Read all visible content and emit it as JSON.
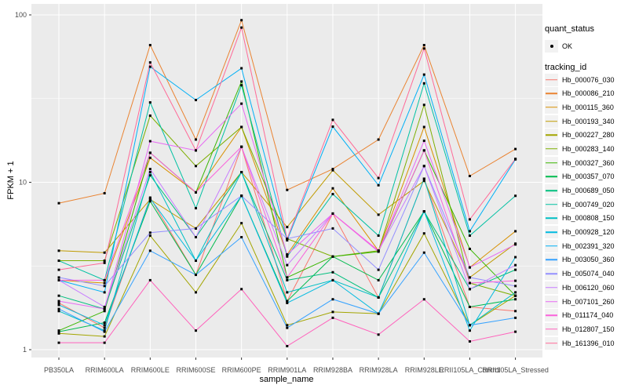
{
  "theme": {
    "panel_bg": "#EBEBEB",
    "grid_color": "#FFFFFF",
    "tick_color": "#333333",
    "tick_label_color": "#4D4D4D",
    "point_color": "#000000",
    "legend_key_bg": "#F2F2F2"
  },
  "chart_data": {
    "type": "line",
    "title": "",
    "xlabel": "sample_name",
    "ylabel": "FPKM + 1",
    "y_scale": "log10",
    "ylim": [
      0.91,
      115
    ],
    "y_ticks": [
      100,
      10,
      1
    ],
    "y_minor_ticks": [
      3.162,
      31.62
    ],
    "grid": true,
    "legend_position": "right",
    "marker": "black-square",
    "categories": [
      "PB350LA",
      "RRIM600LA",
      "RRIM600LE",
      "RRIM600SE",
      "RRIM600PE",
      "RRIM901LA",
      "RRIM928BA",
      "RRIM928LA",
      "RRIM928LE",
      "RRII105LA_Control",
      "RRII105LA_Stressed"
    ],
    "series": [
      {
        "name": "Hb_000076_030",
        "color": "#F8766D",
        "values": [
          1.9,
          1.35,
          8.1,
          2.8,
          16.3,
          1.95,
          6.5,
          2.05,
          10.5,
          1.8,
          1.7
        ]
      },
      {
        "name": "Hb_000086_210",
        "color": "#EA8331",
        "values": [
          7.5,
          8.6,
          66,
          18,
          93,
          9.0,
          12,
          18,
          66,
          10.9,
          15.8
        ]
      },
      {
        "name": "Hb_000115_360",
        "color": "#D89000",
        "values": [
          2.6,
          2.5,
          14,
          8.7,
          21.4,
          3.7,
          9.2,
          3.9,
          21.4,
          3.1,
          5.1
        ]
      },
      {
        "name": "Hb_000193_340",
        "color": "#C09B00",
        "values": [
          3.9,
          3.8,
          7.9,
          5.3,
          11.5,
          5.4,
          11.8,
          6.4,
          10.2,
          2.7,
          4.3
        ]
      },
      {
        "name": "Hb_000227_280",
        "color": "#A3A500",
        "values": [
          1.25,
          1.2,
          4.8,
          2.2,
          5.7,
          1.4,
          1.68,
          1.64,
          4.95,
          1.4,
          2.1
        ]
      },
      {
        "name": "Hb_000283_140",
        "color": "#7CAE00",
        "values": [
          3.4,
          3.4,
          25,
          12.5,
          21.4,
          4.6,
          3.6,
          3.9,
          29,
          2.5,
          2.1
        ]
      },
      {
        "name": "Hb_000327_360",
        "color": "#39B600",
        "values": [
          1.3,
          1.7,
          15,
          8.7,
          40,
          2.7,
          3.6,
          3.85,
          15.5,
          4.0,
          2.1
        ]
      },
      {
        "name": "Hb_000357_070",
        "color": "#00BB4E",
        "values": [
          1.28,
          1.45,
          7.7,
          2.8,
          8.3,
          1.95,
          3.6,
          2.6,
          6.7,
          1.8,
          2.0
        ]
      },
      {
        "name": "Hb_000689_050",
        "color": "#00BF7D",
        "values": [
          2.1,
          1.75,
          11,
          4.7,
          11.5,
          2.6,
          2.9,
          2.05,
          6.7,
          2.3,
          3.0
        ]
      },
      {
        "name": "Hb_000749_020",
        "color": "#00C1A3",
        "values": [
          3.4,
          2.6,
          30,
          7.0,
          38,
          3.6,
          8.5,
          4.8,
          39,
          4.8,
          8.3
        ]
      },
      {
        "name": "Hb_000808_150",
        "color": "#00BFC4",
        "values": [
          1.7,
          1.3,
          11.5,
          3.4,
          11.5,
          2.2,
          2.6,
          2.05,
          10.5,
          1.4,
          2.2
        ]
      },
      {
        "name": "Hb_000928_120",
        "color": "#00BAE0",
        "values": [
          1.85,
          1.4,
          8.0,
          3.4,
          8.3,
          1.9,
          2.6,
          1.64,
          6.7,
          1.3,
          3.57
        ]
      },
      {
        "name": "Hb_002391_320",
        "color": "#00B0F6",
        "values": [
          2.6,
          2.2,
          49,
          31,
          48,
          4.5,
          21.5,
          9.6,
          44,
          5.1,
          13.7
        ]
      },
      {
        "name": "Hb_003050_360",
        "color": "#35A2FF",
        "values": [
          1.75,
          1.28,
          3.9,
          2.8,
          4.7,
          1.35,
          2.0,
          1.64,
          3.8,
          1.4,
          1.55
        ]
      },
      {
        "name": "Hb_005074_040",
        "color": "#9590FF",
        "values": [
          2.7,
          2.4,
          5.0,
          5.3,
          8.3,
          4.6,
          5.3,
          3.0,
          12.5,
          2.7,
          2.4
        ]
      },
      {
        "name": "Hb_006120_060",
        "color": "#C77CFF",
        "values": [
          2.6,
          1.8,
          12,
          4.7,
          16.3,
          3.2,
          6.5,
          3.9,
          12.5,
          2.3,
          3.2
        ]
      },
      {
        "name": "Hb_007101_260",
        "color": "#E76BF3",
        "values": [
          1.95,
          1.75,
          17.6,
          15.5,
          29.5,
          3.7,
          6.5,
          3.85,
          17.7,
          3.1,
          4.25
        ]
      },
      {
        "name": "Hb_011174_040",
        "color": "#FA62DB",
        "values": [
          2.6,
          2.6,
          15,
          8.7,
          16.3,
          2.7,
          6.5,
          3.9,
          15.5,
          2.5,
          2.58
        ]
      },
      {
        "name": "Hb_012807_150",
        "color": "#FF62BC",
        "values": [
          1.1,
          1.1,
          2.6,
          1.3,
          2.3,
          1.05,
          1.55,
          1.23,
          2.0,
          1.12,
          1.28
        ]
      },
      {
        "name": "Hb_161396_010",
        "color": "#FF6A98",
        "values": [
          3.0,
          3.3,
          52,
          15.5,
          84,
          4.6,
          23.6,
          10.6,
          63,
          6.0,
          13.8
        ]
      }
    ],
    "legend": {
      "quant_status": {
        "title": "quant_status",
        "items": [
          {
            "label": "OK",
            "glyph": "point",
            "color": "#000000"
          }
        ]
      },
      "tracking_id": {
        "title": "tracking_id"
      }
    }
  }
}
